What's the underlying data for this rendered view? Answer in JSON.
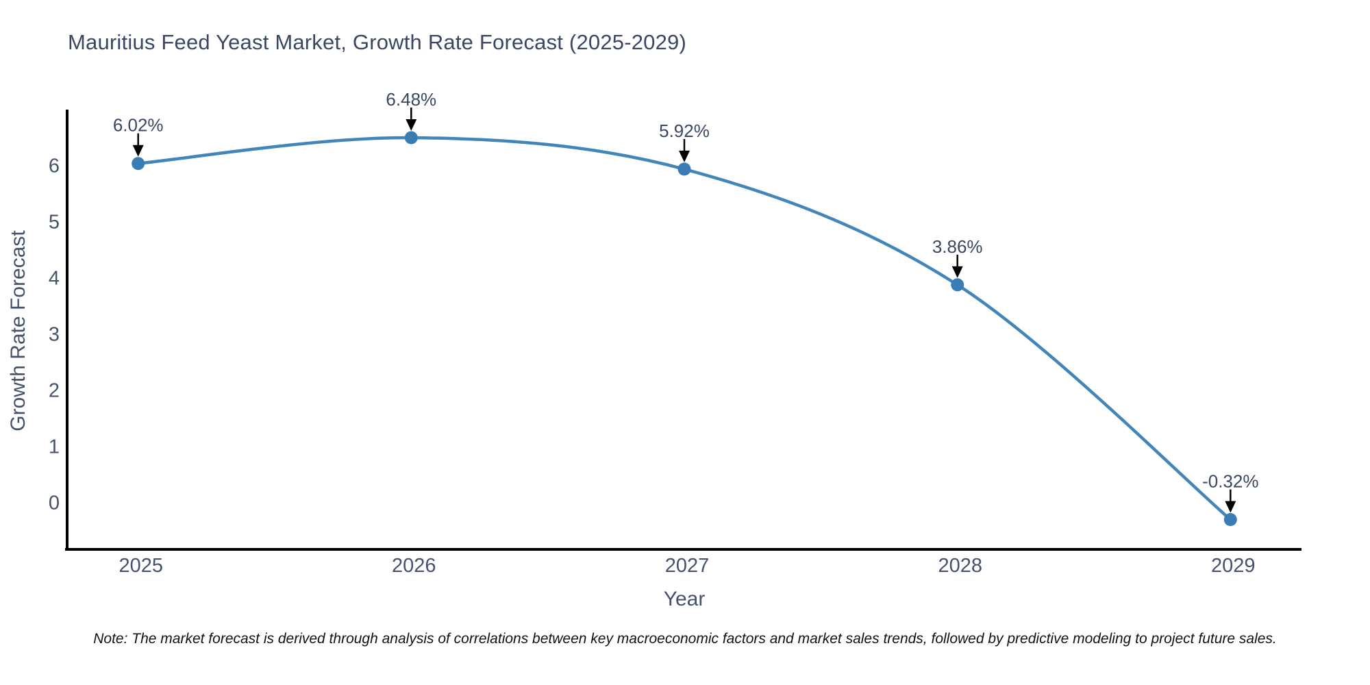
{
  "title": "Mauritius Feed Yeast Market, Growth Rate Forecast (2025-2029)",
  "note": "Note: The market forecast is derived through analysis of correlations between key macroeconomic factors and market sales trends, followed by predictive modeling to project future sales.",
  "chart_data": {
    "type": "line",
    "title": "Mauritius Feed Yeast Market, Growth Rate Forecast (2025-2029)",
    "xlabel": "Year",
    "ylabel": "Growth Rate Forecast",
    "x": [
      2025,
      2026,
      2027,
      2028,
      2029
    ],
    "values": [
      6.02,
      6.48,
      5.92,
      3.86,
      -0.32
    ],
    "point_labels": [
      "6.02%",
      "6.48%",
      "5.92%",
      "3.86%",
      "-0.32%"
    ],
    "yticks": [
      0,
      1,
      2,
      3,
      4,
      5,
      6
    ],
    "xlim": [
      2024.74,
      2029.26
    ],
    "ylim": [
      -0.85,
      6.98
    ],
    "grid": false,
    "legend": "none",
    "line_style": "smooth-spline",
    "annotations": "value labels with downward arrows above each point",
    "colors": {
      "line": "#4285b8",
      "marker": "#3a7db4",
      "arrow": "#000000",
      "axis": "#000000",
      "tick_text": "#47516b",
      "axis_title_text": "#45506a",
      "chart_title_text": "#3c4662",
      "note_text": "#111111",
      "background": "#ffffff"
    }
  }
}
